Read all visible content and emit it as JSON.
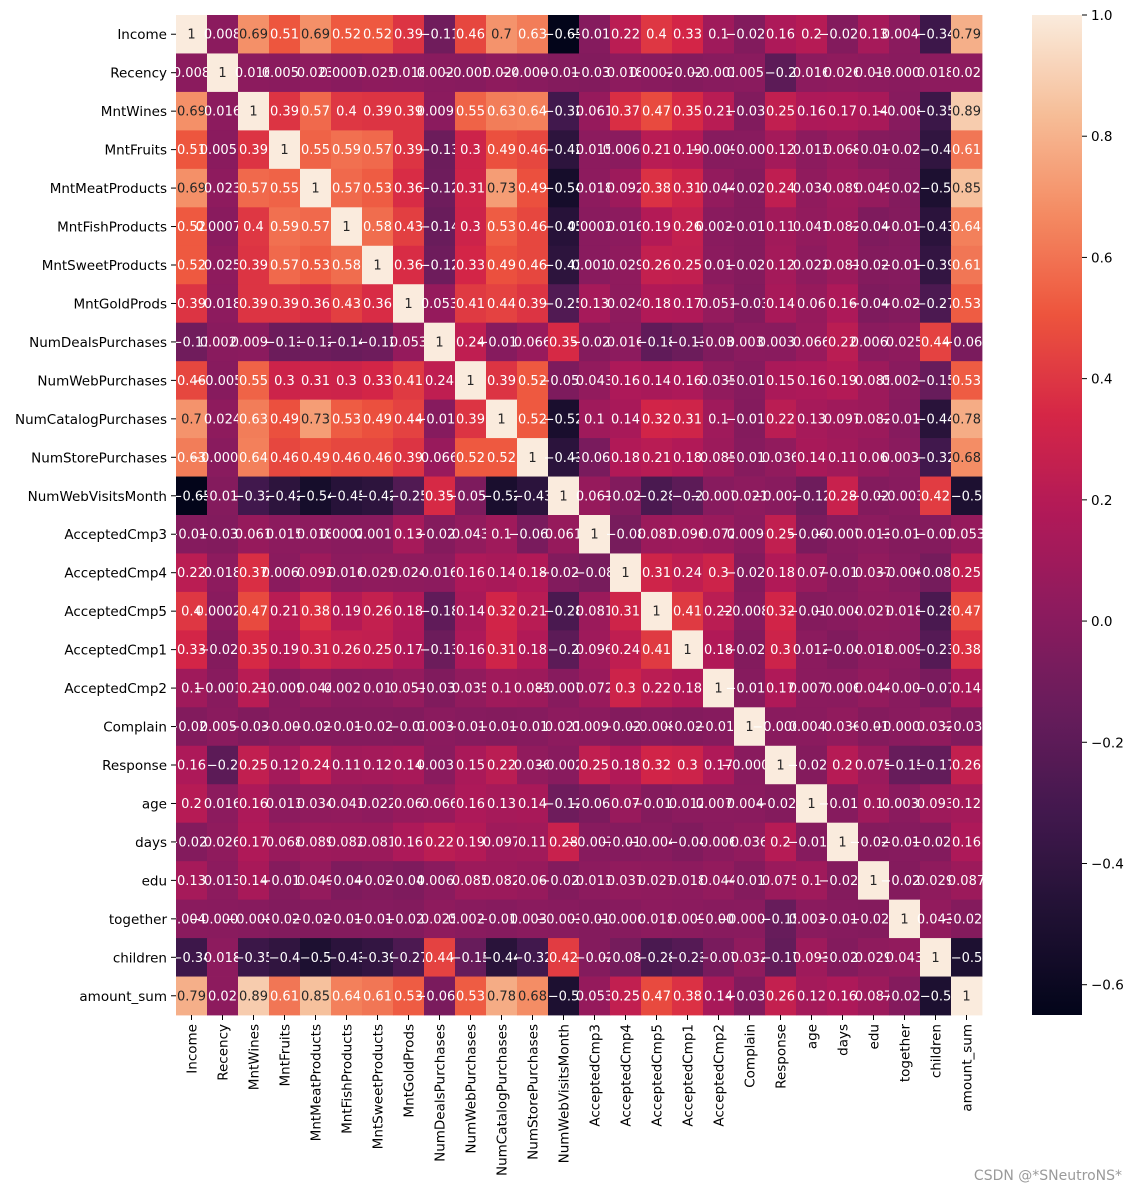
{
  "watermark": "CSDN @*SNeutroNS*",
  "chart_data": {
    "type": "heatmap",
    "title": "",
    "xlabel": "",
    "ylabel": "",
    "labels": [
      "Income",
      "Recency",
      "MntWines",
      "MntFruits",
      "MntMeatProducts",
      "MntFishProducts",
      "MntSweetProducts",
      "MntGoldProds",
      "NumDealsPurchases",
      "NumWebPurchases",
      "NumCatalogPurchases",
      "NumStorePurchases",
      "NumWebVisitsMonth",
      "AcceptedCmp3",
      "AcceptedCmp4",
      "AcceptedCmp5",
      "AcceptedCmp1",
      "AcceptedCmp2",
      "Complain",
      "Response",
      "age",
      "days",
      "edu",
      "together",
      "children",
      "amount_sum"
    ],
    "colorbar_range": [
      -0.65,
      1.0
    ],
    "colorbar_ticks": [
      "1.0",
      "0.8",
      "0.6",
      "0.4",
      "0.2",
      "0.0",
      "−0.2",
      "−0.4",
      "−0.6"
    ],
    "colorbar_tick_values": [
      1.0,
      0.8,
      0.6,
      0.4,
      0.2,
      0.0,
      -0.2,
      -0.4,
      -0.6
    ],
    "matrix": [
      [
        1,
        0.008,
        0.69,
        0.51,
        0.69,
        0.52,
        0.52,
        0.39,
        -0.11,
        0.46,
        0.7,
        0.63,
        -0.65,
        -0.015,
        0.22,
        0.4,
        0.33,
        0.1,
        -0.028,
        0.16,
        0.2,
        -0.024,
        0.13,
        0.0048,
        -0.34,
        0.79
      ],
      [
        0.008,
        1,
        0.016,
        0.0053,
        0.023,
        0.00079,
        0.025,
        0.018,
        0.0026,
        -0.0057,
        0.024,
        -0.00046,
        -0.019,
        -0.032,
        0.018,
        0.00023,
        -0.021,
        -0.0014,
        0.0057,
        -0.2,
        0.016,
        0.026,
        0.013,
        -0.00042,
        0.018,
        0.02
      ],
      [
        0.69,
        0.016,
        1,
        0.39,
        0.57,
        0.4,
        0.39,
        0.39,
        0.0091,
        0.55,
        0.63,
        0.64,
        -0.32,
        0.061,
        0.37,
        0.47,
        0.35,
        0.21,
        -0.036,
        0.25,
        0.16,
        0.17,
        0.14,
        -0.0085,
        -0.35,
        0.89
      ],
      [
        0.51,
        0.0053,
        0.39,
        1,
        0.55,
        0.59,
        0.57,
        0.39,
        -0.13,
        0.3,
        0.49,
        0.46,
        -0.42,
        0.015,
        0.0066,
        0.21,
        0.19,
        -0.0099,
        -0.003,
        0.12,
        0.013,
        0.068,
        -0.018,
        -0.028,
        -0.4,
        0.61
      ],
      [
        0.69,
        0.023,
        0.57,
        0.55,
        1,
        0.57,
        0.53,
        0.36,
        -0.12,
        0.31,
        0.73,
        0.49,
        -0.54,
        0.018,
        0.092,
        0.38,
        0.31,
        0.044,
        -0.021,
        0.24,
        0.034,
        0.089,
        0.049,
        -0.025,
        -0.5,
        0.85
      ],
      [
        0.52,
        0.00079,
        0.4,
        0.59,
        0.57,
        1,
        0.58,
        0.43,
        -0.14,
        0.3,
        0.53,
        0.46,
        -0.45,
        0.00028,
        0.016,
        0.19,
        0.26,
        0.0023,
        -0.019,
        0.11,
        0.041,
        0.082,
        -0.047,
        -0.019,
        -0.43,
        0.64
      ],
      [
        0.52,
        0.025,
        0.39,
        0.57,
        0.53,
        0.58,
        1,
        0.36,
        -0.12,
        0.33,
        0.49,
        0.46,
        -0.42,
        0.0017,
        0.029,
        0.26,
        0.25,
        0.01,
        -0.021,
        0.12,
        0.022,
        0.081,
        -0.026,
        -0.017,
        -0.39,
        0.61
      ],
      [
        0.39,
        0.018,
        0.39,
        0.39,
        0.36,
        0.43,
        0.36,
        1,
        0.053,
        0.41,
        0.44,
        0.39,
        -0.25,
        0.13,
        0.024,
        0.18,
        0.17,
        0.051,
        -0.03,
        0.14,
        0.06,
        0.16,
        -0.048,
        -0.027,
        -0.27,
        0.53
      ],
      [
        -0.11,
        0.0026,
        0.0091,
        -0.13,
        -0.12,
        -0.14,
        -0.12,
        0.053,
        1,
        0.24,
        -0.012,
        0.066,
        0.35,
        -0.023,
        0.016,
        -0.18,
        -0.13,
        -0.038,
        0.0037,
        0.0032,
        0.066,
        0.22,
        0.0069,
        0.025,
        0.44,
        -0.066
      ],
      [
        0.46,
        -0.0057,
        0.55,
        0.3,
        0.31,
        0.3,
        0.33,
        0.41,
        0.24,
        1,
        0.39,
        0.52,
        -0.052,
        0.043,
        0.16,
        0.14,
        0.16,
        0.035,
        -0.014,
        0.15,
        0.16,
        0.19,
        0.085,
        0.0025,
        -0.15,
        0.53
      ],
      [
        0.7,
        0.024,
        0.63,
        0.49,
        0.73,
        0.53,
        0.49,
        0.44,
        -0.012,
        0.39,
        1,
        0.52,
        -0.52,
        0.1,
        0.14,
        0.32,
        0.31,
        0.1,
        -0.019,
        0.22,
        0.13,
        0.097,
        0.082,
        -0.011,
        -0.44,
        0.78
      ],
      [
        0.63,
        -0.00046,
        0.64,
        0.46,
        0.49,
        0.46,
        0.46,
        0.39,
        0.066,
        0.52,
        0.52,
        1,
        -0.43,
        -0.069,
        0.18,
        0.21,
        0.18,
        0.085,
        -0.012,
        0.036,
        0.14,
        0.11,
        0.06,
        0.0036,
        -0.32,
        0.68
      ],
      [
        -0.65,
        -0.019,
        -0.32,
        -0.42,
        -0.54,
        -0.45,
        -0.42,
        -0.25,
        0.35,
        -0.052,
        -0.52,
        -0.43,
        1,
        0.061,
        -0.029,
        -0.28,
        -0.2,
        -0.0075,
        0.021,
        -0.0026,
        -0.12,
        0.28,
        -0.027,
        -0.0031,
        0.42,
        -0.5
      ],
      [
        -0.015,
        -0.032,
        0.061,
        0.015,
        0.018,
        0.00028,
        0.0017,
        0.13,
        -0.023,
        0.043,
        0.1,
        -0.069,
        0.061,
        1,
        -0.08,
        0.081,
        0.096,
        0.072,
        0.0096,
        0.25,
        -0.061,
        -0.0079,
        0.013,
        -0.019,
        -0.02,
        0.053
      ],
      [
        0.22,
        0.018,
        0.37,
        0.0066,
        0.092,
        0.016,
        0.029,
        0.024,
        0.016,
        0.16,
        0.14,
        0.18,
        -0.029,
        -0.08,
        1,
        0.31,
        0.24,
        0.3,
        -0.027,
        0.18,
        0.07,
        -0.016,
        0.037,
        -0.0068,
        -0.088,
        0.25
      ],
      [
        0.4,
        0.00023,
        0.47,
        0.21,
        0.38,
        0.19,
        0.26,
        0.18,
        -0.18,
        0.14,
        0.32,
        0.21,
        -0.28,
        0.081,
        0.31,
        1,
        0.41,
        0.22,
        -0.0084,
        0.32,
        -0.019,
        -0.0045,
        0.027,
        0.018,
        -0.28,
        0.47
      ],
      [
        0.33,
        -0.021,
        0.35,
        0.19,
        0.31,
        0.26,
        0.25,
        0.17,
        -0.13,
        0.16,
        0.31,
        0.18,
        -0.2,
        0.096,
        0.24,
        0.41,
        1,
        0.18,
        -0.025,
        0.3,
        0.012,
        -0.04,
        0.018,
        0.009,
        -0.23,
        0.38
      ],
      [
        0.1,
        -0.0014,
        0.21,
        -0.0099,
        0.044,
        0.0023,
        0.01,
        0.051,
        -0.038,
        0.035,
        0.1,
        0.085,
        -0.0075,
        0.072,
        0.3,
        0.22,
        0.18,
        1,
        -0.011,
        0.17,
        0.0078,
        0.006,
        0.044,
        -0.003,
        -0.07,
        0.14
      ],
      [
        -0.028,
        0.0057,
        -0.036,
        -0.003,
        -0.021,
        -0.019,
        -0.021,
        -0.03,
        0.0037,
        -0.014,
        -0.019,
        -0.012,
        0.021,
        0.0096,
        -0.027,
        -0.0084,
        -0.025,
        -0.011,
        1,
        -0.0001,
        0.0046,
        0.036,
        -0.019,
        -0.00088,
        0.032,
        -0.034
      ],
      [
        0.16,
        -0.2,
        0.25,
        0.12,
        0.24,
        0.11,
        0.12,
        0.14,
        0.0032,
        0.15,
        0.22,
        0.036,
        -0.0026,
        0.25,
        0.18,
        0.32,
        0.3,
        0.17,
        -0.0001,
        1,
        -0.021,
        0.2,
        0.075,
        -0.15,
        -0.17,
        0.26
      ],
      [
        0.2,
        0.016,
        0.16,
        0.013,
        0.034,
        0.041,
        0.022,
        0.06,
        0.066,
        0.16,
        0.13,
        0.14,
        -0.12,
        -0.061,
        0.07,
        -0.019,
        0.012,
        0.0078,
        0.0046,
        -0.021,
        1,
        -0.014,
        0.1,
        0.0037,
        0.093,
        0.12
      ],
      [
        -0.024,
        0.026,
        0.17,
        0.068,
        0.089,
        0.082,
        0.081,
        0.16,
        0.22,
        0.19,
        0.097,
        0.11,
        0.28,
        -0.0079,
        -0.016,
        -0.0045,
        -0.04,
        0.006,
        0.036,
        0.2,
        -0.014,
        1,
        -0.021,
        -0.012,
        -0.026,
        0.16
      ],
      [
        0.13,
        0.013,
        0.14,
        -0.018,
        0.049,
        -0.047,
        -0.026,
        -0.048,
        0.0069,
        0.085,
        0.082,
        0.06,
        -0.027,
        0.013,
        0.037,
        0.027,
        0.018,
        0.044,
        -0.019,
        0.075,
        0.1,
        -0.021,
        1,
        -0.022,
        0.029,
        0.087
      ],
      [
        0.0048,
        -0.00042,
        -0.0085,
        -0.028,
        -0.025,
        -0.019,
        -0.017,
        -0.027,
        0.025,
        0.0025,
        -0.011,
        0.0036,
        -0.0031,
        -0.019,
        -0.0068,
        0.018,
        0.009,
        -0.003,
        -0.00088,
        -0.15,
        0.0037,
        -0.012,
        -0.022,
        1,
        0.043,
        -0.021
      ],
      [
        -0.34,
        0.018,
        -0.35,
        -0.4,
        -0.5,
        -0.43,
        -0.39,
        -0.27,
        0.44,
        -0.15,
        -0.44,
        -0.32,
        0.42,
        -0.02,
        -0.088,
        -0.28,
        -0.23,
        -0.07,
        0.032,
        -0.17,
        0.093,
        -0.026,
        0.029,
        0.043,
        1,
        -0.5
      ],
      [
        0.79,
        0.02,
        0.89,
        0.61,
        0.85,
        0.64,
        0.61,
        0.53,
        -0.066,
        0.53,
        0.78,
        0.68,
        -0.5,
        0.053,
        0.25,
        0.47,
        0.38,
        0.14,
        -0.034,
        0.26,
        0.12,
        0.16,
        0.087,
        -0.021,
        -0.5,
        1
      ]
    ]
  }
}
